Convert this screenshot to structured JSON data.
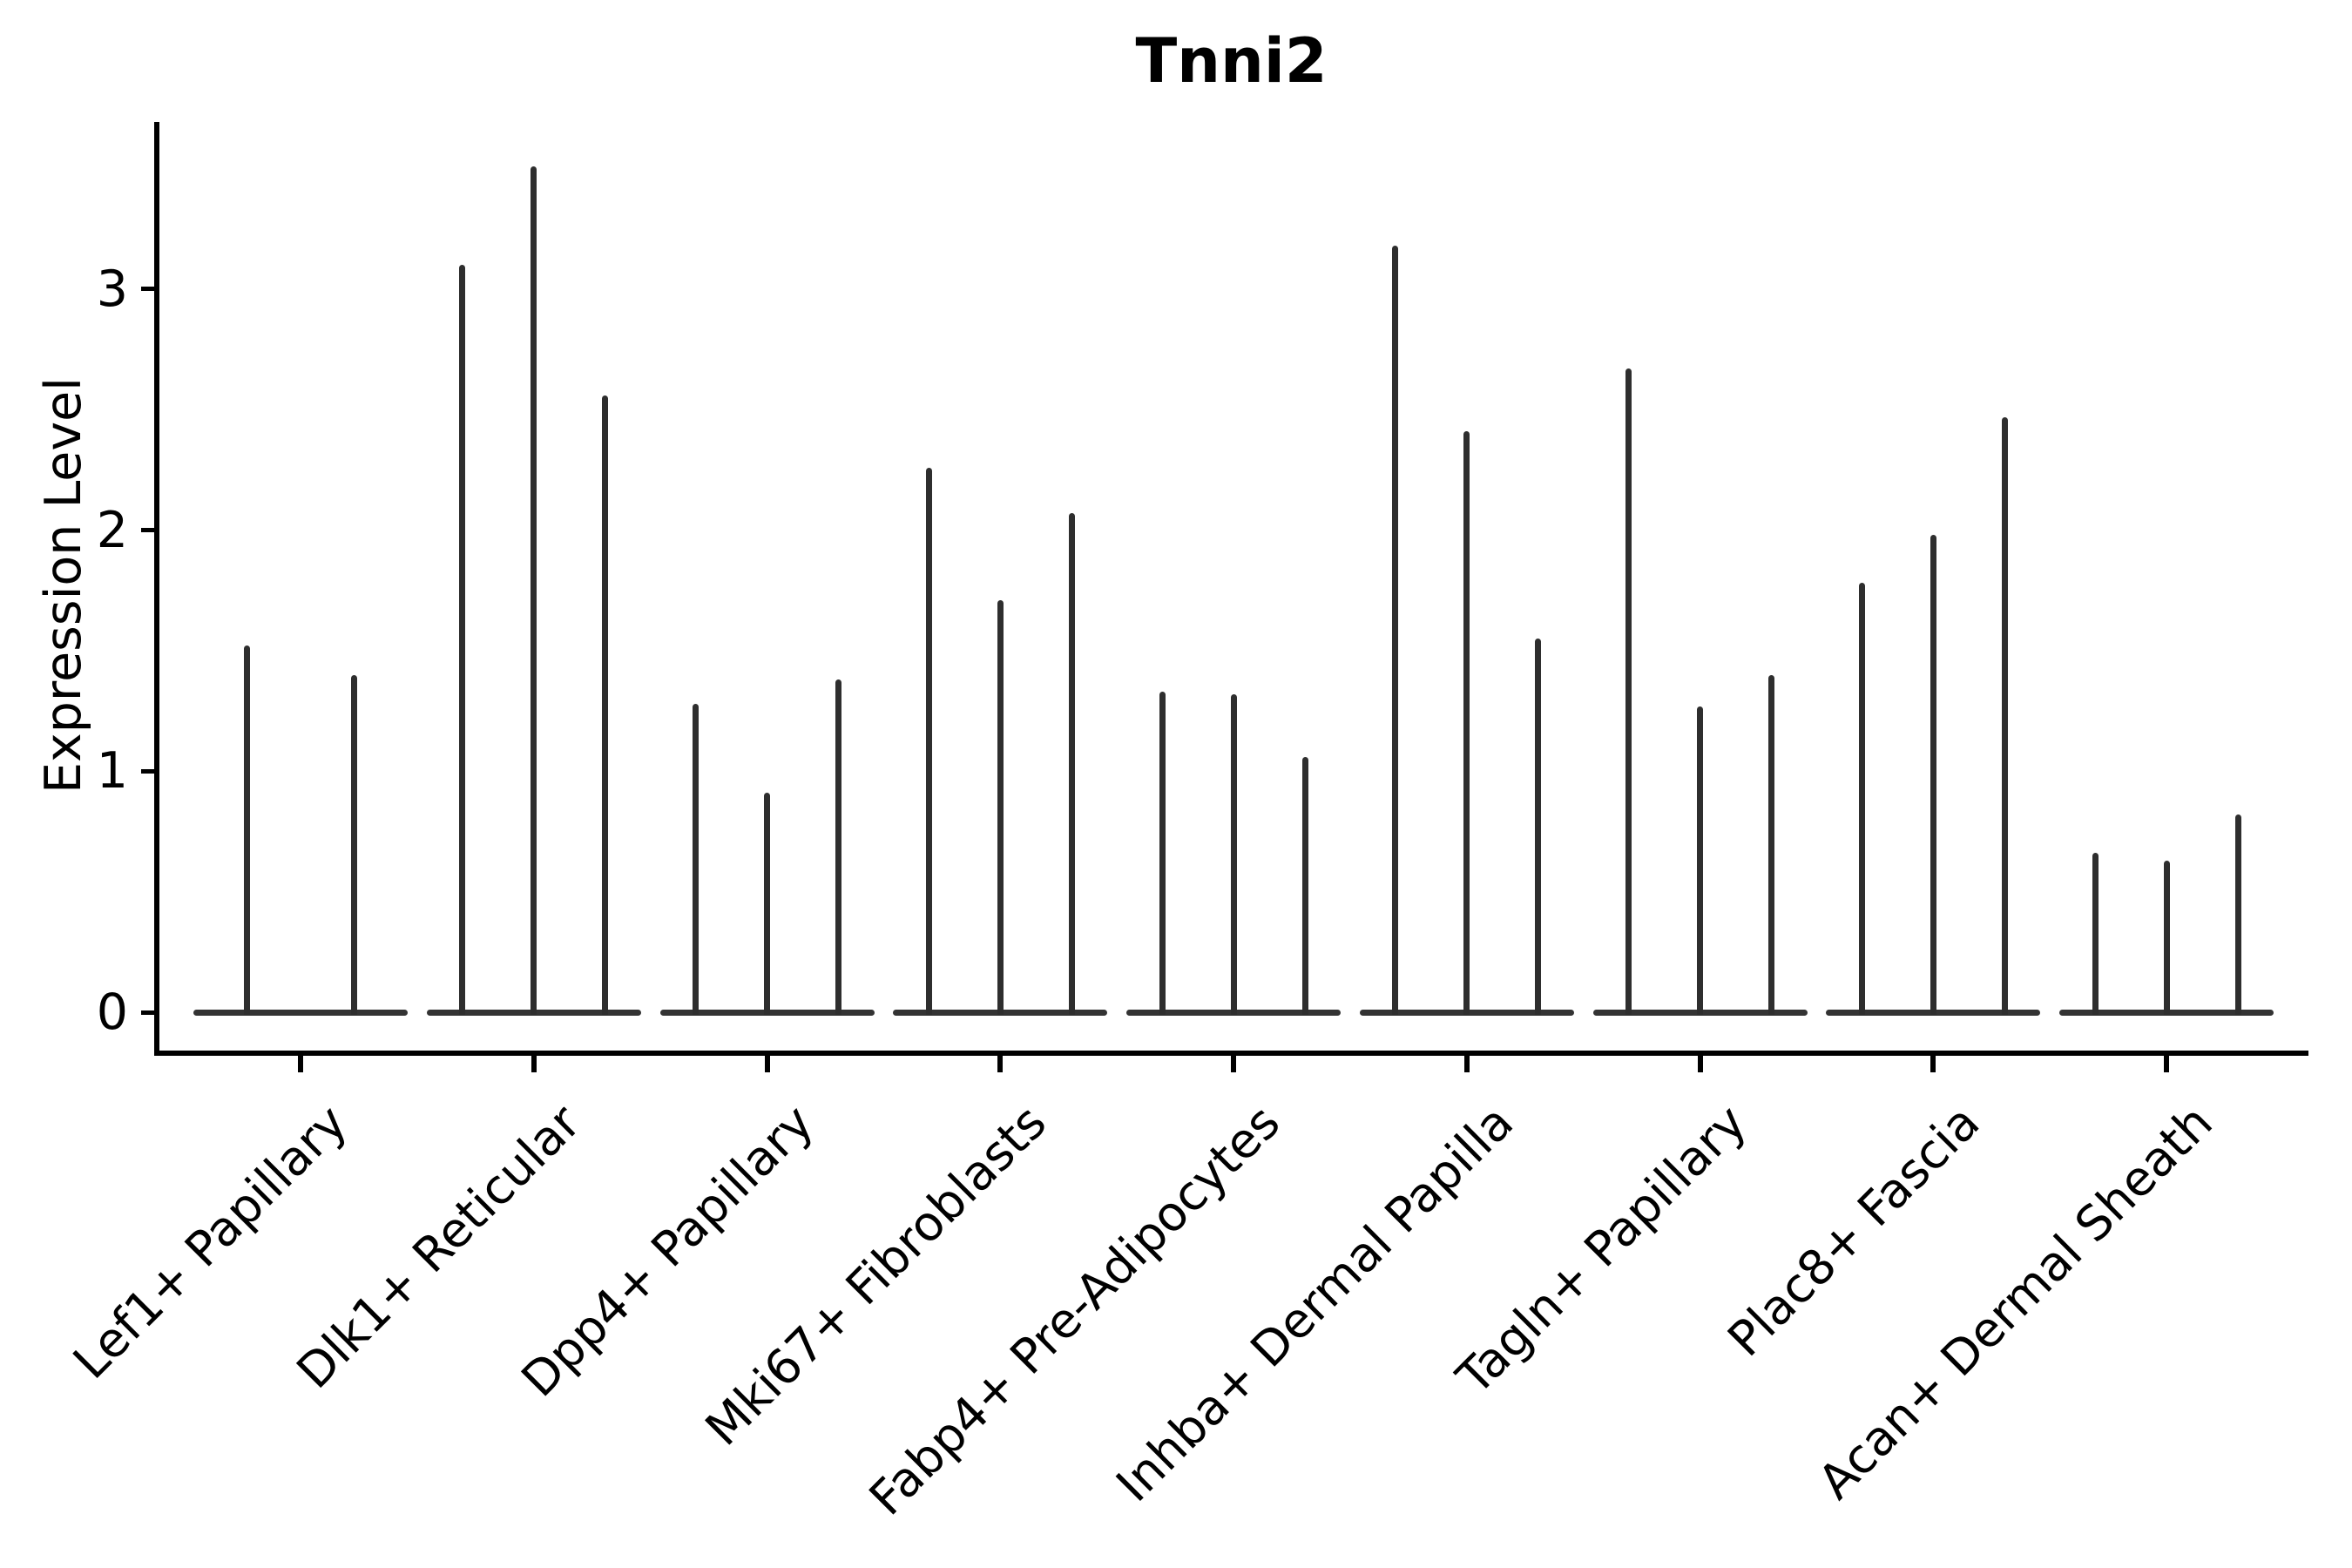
{
  "figure": {
    "title": "Tnni2",
    "y_axis_label": "Expression Level"
  },
  "chart_data": {
    "type": "violin",
    "title": "Tnni2",
    "subtitle": "",
    "xlabel": "",
    "ylabel": "Expression Level",
    "ylim": [
      -0.2,
      3.7
    ],
    "yticks": [
      0,
      1,
      2,
      3
    ],
    "grid": false,
    "legend": false,
    "style_note": "Sparse-expression violin plot: each violin collapses to a flat baseline at 0 with a thin vertical spike up to the cluster's maximum expression value; 3 violins per cluster except the first cluster which has 2.",
    "categories": [
      "Lef1+ Papillary",
      "Dlk1+ Reticular",
      "Dpp4+ Papillary",
      "Mki67+ Fibroblasts",
      "Fabp4+ Pre-Adipocytes",
      "Inhba+ Dermal Papilla",
      "Tagln+ Papillary",
      "Plac8+ Fascia",
      "Acan+ Dermal Sheath"
    ],
    "groups": [
      {
        "category": "Lef1+ Papillary",
        "spike_maxima": [
          1.52,
          1.4
        ]
      },
      {
        "category": "Dlk1+ Reticular",
        "spike_maxima": [
          3.1,
          3.51,
          2.56
        ]
      },
      {
        "category": "Dpp4+ Papillary",
        "spike_maxima": [
          1.28,
          0.91,
          1.38
        ]
      },
      {
        "category": "Mki67+ Fibroblasts",
        "spike_maxima": [
          2.26,
          1.71,
          2.07
        ]
      },
      {
        "category": "Fabp4+ Pre-Adipocytes",
        "spike_maxima": [
          1.33,
          1.32,
          1.06
        ]
      },
      {
        "category": "Inhba+ Dermal Papilla",
        "spike_maxima": [
          3.18,
          2.41,
          1.55
        ]
      },
      {
        "category": "Tagln+ Papillary",
        "spike_maxima": [
          2.67,
          1.27,
          1.4
        ]
      },
      {
        "category": "Plac8+ Fascia",
        "spike_maxima": [
          1.78,
          1.98,
          2.47
        ]
      },
      {
        "category": "Acan+ Dermal Sheath",
        "spike_maxima": [
          0.66,
          0.63,
          0.82
        ]
      }
    ]
  },
  "colors": {
    "background": "#ffffff",
    "axis": "#000000",
    "text": "#000000",
    "violin": "#2e2e2e",
    "baseline": "#333333"
  }
}
